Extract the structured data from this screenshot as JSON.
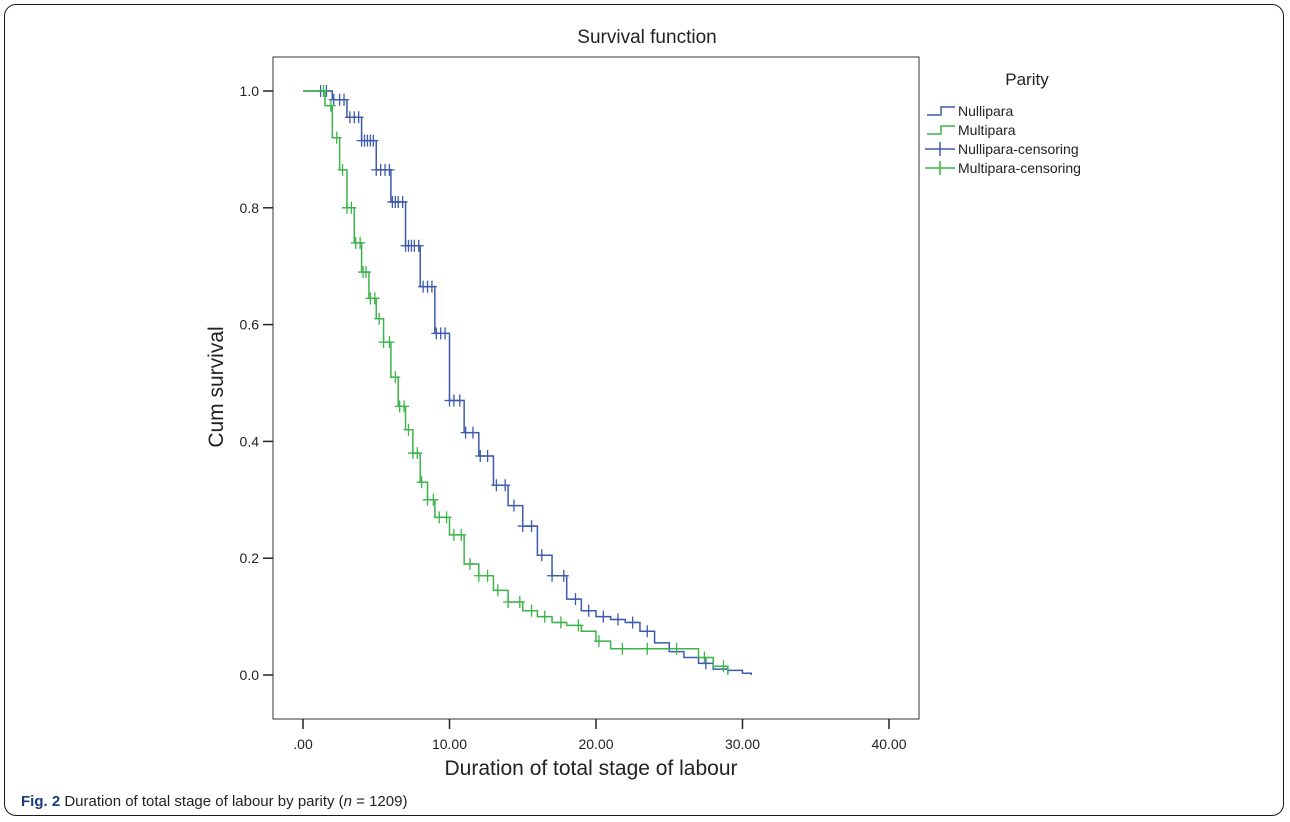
{
  "caption": {
    "fig_label": "Fig. 2",
    "text_before": " Duration of total stage of labour by parity (",
    "n_var": "n",
    "text_after": " = 1209)"
  },
  "chart_data": {
    "type": "line",
    "step": true,
    "title": "Survival function",
    "xlabel": "Duration of total stage of labour",
    "ylabel": "Cum survival",
    "xlim": [
      0,
      40
    ],
    "ylim": [
      0,
      1.0
    ],
    "x_ticks": [
      0,
      10,
      20,
      30,
      40
    ],
    "x_tick_labels": [
      ".00",
      "10.00",
      "20.00",
      "30.00",
      "40.00"
    ],
    "y_ticks": [
      0.0,
      0.2,
      0.4,
      0.6,
      0.8,
      1.0
    ],
    "y_tick_labels": [
      "0.0",
      "0.2",
      "0.4",
      "0.6",
      "0.8",
      "1.0"
    ],
    "grid": false,
    "legend": {
      "title": "Parity",
      "placement": "right",
      "entries": [
        {
          "label": "Nullipara",
          "kind": "step",
          "color": "#3d5aae"
        },
        {
          "label": "Multipara",
          "kind": "step",
          "color": "#3cb44a"
        },
        {
          "label": "Nullipara-censoring",
          "kind": "cross",
          "color": "#3d5aae"
        },
        {
          "label": "Multipara-censoring",
          "kind": "cross",
          "color": "#3cb44a"
        }
      ]
    },
    "series": [
      {
        "name": "Nullipara",
        "color": "#3d5aae",
        "points": [
          [
            0,
            1.0
          ],
          [
            1,
            1.0
          ],
          [
            2,
            0.985
          ],
          [
            3,
            0.955
          ],
          [
            4,
            0.915
          ],
          [
            5,
            0.865
          ],
          [
            6,
            0.81
          ],
          [
            7,
            0.735
          ],
          [
            8,
            0.665
          ],
          [
            9,
            0.585
          ],
          [
            10,
            0.47
          ],
          [
            11,
            0.415
          ],
          [
            12,
            0.375
          ],
          [
            13,
            0.325
          ],
          [
            14,
            0.29
          ],
          [
            15,
            0.255
          ],
          [
            16,
            0.205
          ],
          [
            17,
            0.17
          ],
          [
            18,
            0.13
          ],
          [
            19,
            0.11
          ],
          [
            20,
            0.1
          ],
          [
            21,
            0.095
          ],
          [
            22,
            0.09
          ],
          [
            23,
            0.075
          ],
          [
            24,
            0.055
          ],
          [
            25,
            0.04
          ],
          [
            26,
            0.03
          ],
          [
            27,
            0.02
          ],
          [
            28,
            0.01
          ],
          [
            29,
            0.008
          ],
          [
            30,
            0.003
          ],
          [
            30.6,
            0.0
          ]
        ],
        "censored_x": [
          1.2,
          1.6,
          2.1,
          2.5,
          2.8,
          3.2,
          3.5,
          3.8,
          4.0,
          4.2,
          4.4,
          4.6,
          4.8,
          5.0,
          5.3,
          5.6,
          5.9,
          6.1,
          6.3,
          6.5,
          6.8,
          7.0,
          7.2,
          7.4,
          7.6,
          7.9,
          8.2,
          8.5,
          8.8,
          9.1,
          9.4,
          9.7,
          10.0,
          10.3,
          10.7,
          11.1,
          11.6,
          12.1,
          12.6,
          13.2,
          13.8,
          14.4,
          15.0,
          15.6,
          16.3,
          17.0,
          17.8,
          18.6,
          19.5,
          20.5,
          21.5,
          22.5,
          23.5,
          27.5
        ]
      },
      {
        "name": "Multipara",
        "color": "#3cb44a",
        "points": [
          [
            0,
            1.0
          ],
          [
            1,
            1.0
          ],
          [
            1.5,
            0.975
          ],
          [
            2,
            0.92
          ],
          [
            2.5,
            0.865
          ],
          [
            3,
            0.8
          ],
          [
            3.5,
            0.74
          ],
          [
            4,
            0.69
          ],
          [
            4.5,
            0.645
          ],
          [
            5,
            0.61
          ],
          [
            5.5,
            0.57
          ],
          [
            6,
            0.51
          ],
          [
            6.5,
            0.46
          ],
          [
            7,
            0.42
          ],
          [
            7.5,
            0.38
          ],
          [
            8,
            0.33
          ],
          [
            8.5,
            0.3
          ],
          [
            9,
            0.27
          ],
          [
            10,
            0.24
          ],
          [
            11,
            0.19
          ],
          [
            12,
            0.17
          ],
          [
            13,
            0.145
          ],
          [
            14,
            0.125
          ],
          [
            15,
            0.11
          ],
          [
            16,
            0.1
          ],
          [
            17,
            0.09
          ],
          [
            18,
            0.085
          ],
          [
            19,
            0.075
          ],
          [
            20,
            0.058
          ],
          [
            21,
            0.045
          ],
          [
            22,
            0.045
          ],
          [
            26,
            0.045
          ],
          [
            27,
            0.03
          ],
          [
            28,
            0.015
          ],
          [
            29,
            0.0
          ]
        ],
        "censored_x": [
          1.4,
          1.9,
          2.3,
          2.7,
          3.0,
          3.3,
          3.6,
          3.9,
          4.1,
          4.3,
          4.6,
          4.9,
          5.2,
          5.5,
          5.9,
          6.3,
          6.6,
          6.9,
          7.2,
          7.5,
          7.8,
          8.1,
          8.5,
          8.9,
          9.3,
          9.8,
          10.3,
          10.8,
          11.4,
          12.0,
          12.6,
          13.3,
          14.0,
          14.8,
          15.6,
          16.5,
          17.6,
          18.8,
          20.2,
          21.8,
          23.5,
          25.5,
          27.4,
          28.7
        ]
      }
    ]
  }
}
